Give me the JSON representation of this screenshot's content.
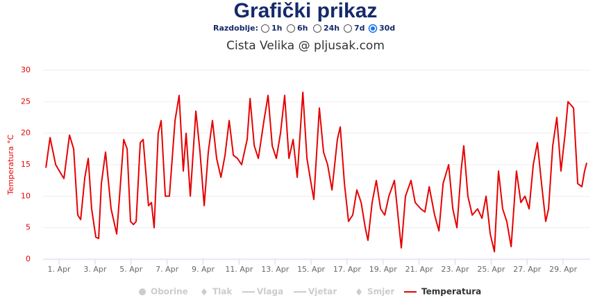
{
  "header": {
    "title": "Grafički prikaz",
    "period_label": "Razdoblje:",
    "period_options": [
      "1h",
      "6h",
      "24h",
      "7d",
      "30d"
    ],
    "selected_period": "30d",
    "subtitle": "Cista Velika @ pljusak.com"
  },
  "chart_data": {
    "type": "line",
    "y_label": "Temperatura °C",
    "x": [
      0.27,
      0.5,
      0.81,
      1.12,
      1.27,
      1.58,
      1.81,
      2.04,
      2.2,
      2.43,
      2.62,
      2.81,
      3.04,
      3.2,
      3.35,
      3.58,
      3.89,
      4.2,
      4.36,
      4.59,
      4.78,
      4.97,
      5.13,
      5.28,
      5.51,
      5.67,
      5.97,
      6.13,
      6.28,
      6.51,
      6.67,
      6.9,
      7.13,
      7.44,
      7.67,
      7.9,
      8.06,
      8.29,
      8.6,
      8.83,
      9.06,
      9.29,
      9.52,
      9.75,
      9.99,
      10.22,
      10.45,
      10.68,
      10.91,
      11.14,
      11.45,
      11.61,
      11.84,
      12.07,
      12.38,
      12.61,
      12.84,
      13.07,
      13.3,
      13.53,
      13.77,
      14.0,
      14.23,
      14.54,
      14.77,
      15.0,
      15.15,
      15.46,
      15.69,
      15.92,
      16.16,
      16.46,
      16.62,
      16.85,
      17.08,
      17.31,
      17.54,
      17.78,
      18.01,
      18.16,
      18.39,
      18.62,
      18.86,
      19.09,
      19.32,
      19.63,
      19.86,
      20.01,
      20.24,
      20.55,
      20.78,
      21.09,
      21.32,
      21.56,
      21.86,
      22.1,
      22.33,
      22.64,
      22.87,
      23.1,
      23.33,
      23.48,
      23.71,
      23.95,
      24.25,
      24.49,
      24.72,
      24.95,
      25.18,
      25.41,
      25.64,
      25.87,
      26.11,
      26.41,
      26.65,
      26.88,
      27.11,
      27.34,
      27.57,
      27.8,
      28.03,
      28.19,
      28.42,
      28.65,
      28.88,
      29.11,
      29.27,
      29.58,
      29.81,
      30.04,
      30.19,
      30.31
    ],
    "series": [
      {
        "name": "Temperatura",
        "color": "#e60000",
        "values": [
          14.5,
          19.3,
          15,
          13.5,
          12.8,
          19.7,
          17.5,
          7,
          6.3,
          13,
          16,
          8,
          3.5,
          3.3,
          12,
          17,
          8,
          4,
          10,
          19,
          17.5,
          6,
          5.5,
          6,
          18.5,
          19,
          8.5,
          9,
          5,
          20,
          22,
          10,
          10,
          22,
          26,
          14,
          20,
          10,
          23.5,
          17,
          8.5,
          17,
          22,
          16,
          13,
          16.5,
          22,
          16.5,
          16,
          15,
          19,
          25.5,
          18,
          16,
          22,
          26,
          18,
          16,
          20,
          26,
          16,
          19,
          13,
          26.5,
          16,
          12,
          9.5,
          24,
          17,
          15,
          11,
          19,
          21,
          12,
          6,
          7,
          11,
          9,
          5,
          3,
          9,
          12.5,
          8,
          7,
          10,
          12.5,
          6,
          1.8,
          10,
          12.5,
          9,
          8,
          7.5,
          11.5,
          7,
          4.5,
          12,
          15,
          8,
          5,
          14,
          18,
          10,
          7,
          8,
          6.5,
          10,
          4,
          1.2,
          14,
          8,
          6,
          2,
          14,
          9,
          10,
          8,
          15,
          18.5,
          12,
          6,
          8,
          18,
          22.5,
          14,
          20,
          25,
          24,
          12,
          11.5,
          14,
          15.3
        ]
      }
    ],
    "hidden_series": [
      "Oborine",
      "Tlak",
      "Vlaga",
      "Vjetar",
      "Smjer"
    ],
    "xlim": [
      0.11,
      30.5
    ],
    "xticks": [
      {
        "value": 1,
        "label": "1. Apr"
      },
      {
        "value": 3,
        "label": "3. Apr"
      },
      {
        "value": 5,
        "label": "5. Apr"
      },
      {
        "value": 7,
        "label": "7. Apr"
      },
      {
        "value": 9,
        "label": "9. Apr"
      },
      {
        "value": 11,
        "label": "11. Apr"
      },
      {
        "value": 13,
        "label": "13. Apr"
      },
      {
        "value": 15,
        "label": "15. Apr"
      },
      {
        "value": 17,
        "label": "17. Apr"
      },
      {
        "value": 19,
        "label": "19. Apr"
      },
      {
        "value": 21,
        "label": "21. Apr"
      },
      {
        "value": 23,
        "label": "23. Apr"
      },
      {
        "value": 25,
        "label": "25. Apr"
      },
      {
        "value": 27,
        "label": "27. Apr"
      },
      {
        "value": 29,
        "label": "29. Apr"
      }
    ],
    "ylim": [
      0,
      30
    ],
    "yticks": [
      0,
      5,
      10,
      15,
      20,
      25,
      30
    ],
    "grid": true
  }
}
